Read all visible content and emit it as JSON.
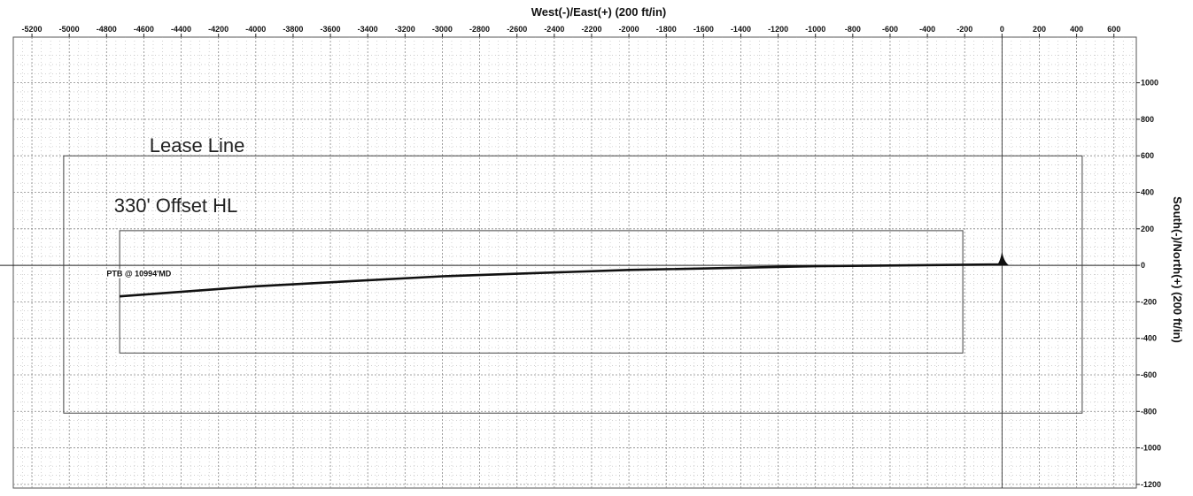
{
  "chart_data": {
    "type": "line",
    "xlabel": "West(-)/East(+) (200 ft/in)",
    "ylabel": "South(-)/North(+) (200 ft/in)",
    "xlim": [
      -5300,
      720
    ],
    "ylim": [
      -1220,
      1250
    ],
    "x_ticks": [
      -5200,
      -5000,
      -4800,
      -4600,
      -4400,
      -4200,
      -4000,
      -3800,
      -3600,
      -3400,
      -3200,
      -3000,
      -2800,
      -2600,
      -2400,
      -2200,
      -2000,
      -1800,
      -1600,
      -1400,
      -1200,
      -1000,
      -800,
      -600,
      -400,
      -200,
      0,
      200,
      400,
      600
    ],
    "y_ticks": [
      1000,
      800,
      600,
      400,
      200,
      0,
      -200,
      -400,
      -600,
      -800,
      -1000,
      -1200
    ],
    "grid": true,
    "colors": {
      "grid": "#888888",
      "lines": "#333333",
      "background": "#ffffff"
    },
    "series": [
      {
        "type": "polygon",
        "x": [
          -5030,
          430,
          430,
          -5030
        ],
        "y": [
          600,
          600,
          -810,
          -810
        ]
      },
      {
        "type": "polygon",
        "x": [
          -4730,
          -210,
          -210,
          -4730
        ],
        "y": [
          190,
          190,
          -480,
          -480
        ]
      },
      {
        "type": "line",
        "x": [
          0,
          -10,
          -1000,
          -2000,
          -3000,
          -4000,
          -4730
        ],
        "y": [
          10,
          5,
          -5,
          -25,
          -60,
          -115,
          -170
        ]
      }
    ],
    "annotations": [
      {
        "text": "Lease Line",
        "x": -4570,
        "y": 620
      },
      {
        "text": "330' Offset HL",
        "x": -4760,
        "y": 290
      },
      {
        "text": "PTB @ 10994'MD",
        "x": -4800,
        "y": -60
      }
    ]
  }
}
